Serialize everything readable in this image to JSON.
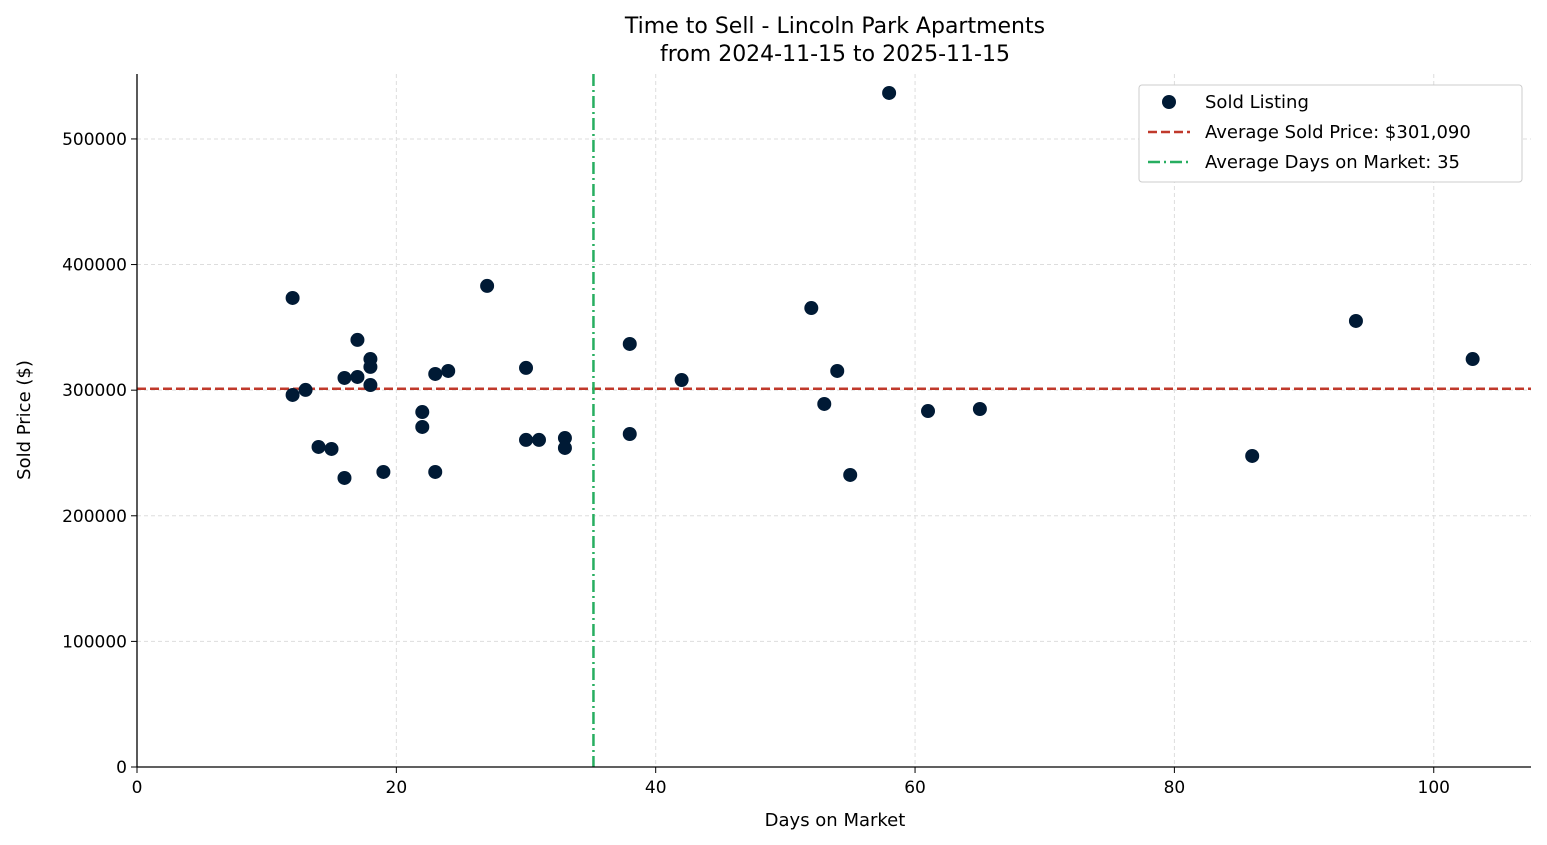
{
  "chart_data": {
    "type": "scatter",
    "title": "Time to Sell - Lincoln Park Apartments",
    "subtitle": "from 2024-11-15 to 2025-11-15",
    "xlabel": "Days on Market",
    "ylabel": "Sold Price ($)",
    "xlim": [
      0,
      107.5
    ],
    "ylim": [
      0,
      551700
    ],
    "x_ticks": [
      0,
      20,
      40,
      60,
      80,
      100
    ],
    "y_ticks": [
      0,
      100000,
      200000,
      300000,
      400000,
      500000
    ],
    "grid": true,
    "legend_position": "top-right",
    "colors": {
      "points": "#001a35",
      "avg_price": "#c0392b",
      "avg_days": "#27ae60"
    },
    "series": [
      {
        "name": "Sold Listing",
        "points": [
          [
            12,
            373400
          ],
          [
            12,
            296200
          ],
          [
            13,
            300200
          ],
          [
            14,
            254800
          ],
          [
            15,
            253200
          ],
          [
            16,
            309700
          ],
          [
            16,
            230100
          ],
          [
            17,
            340000
          ],
          [
            17,
            310500
          ],
          [
            18,
            324800
          ],
          [
            18,
            318500
          ],
          [
            18,
            304100
          ],
          [
            19,
            234900
          ],
          [
            22,
            282600
          ],
          [
            22,
            270700
          ],
          [
            23,
            312900
          ],
          [
            23,
            234900
          ],
          [
            24,
            315300
          ],
          [
            27,
            383000
          ],
          [
            30,
            317700
          ],
          [
            30,
            260400
          ],
          [
            31,
            260400
          ],
          [
            33,
            261900
          ],
          [
            33,
            254000
          ],
          [
            38,
            336800
          ],
          [
            38,
            265100
          ],
          [
            42,
            308100
          ],
          [
            52,
            365400
          ],
          [
            53,
            289000
          ],
          [
            54,
            315300
          ],
          [
            55,
            232500
          ],
          [
            58,
            536600
          ],
          [
            61,
            283400
          ],
          [
            65,
            285000
          ],
          [
            86,
            247600
          ],
          [
            94,
            355100
          ],
          [
            103,
            324800
          ]
        ]
      }
    ],
    "reference_lines": [
      {
        "name": "Average Sold Price: $301,090",
        "orientation": "horizontal",
        "value": 301090,
        "style": "dashed"
      },
      {
        "name": "Average Days on Market: 35",
        "orientation": "vertical",
        "value": 35.2,
        "style": "dashdot"
      }
    ]
  }
}
